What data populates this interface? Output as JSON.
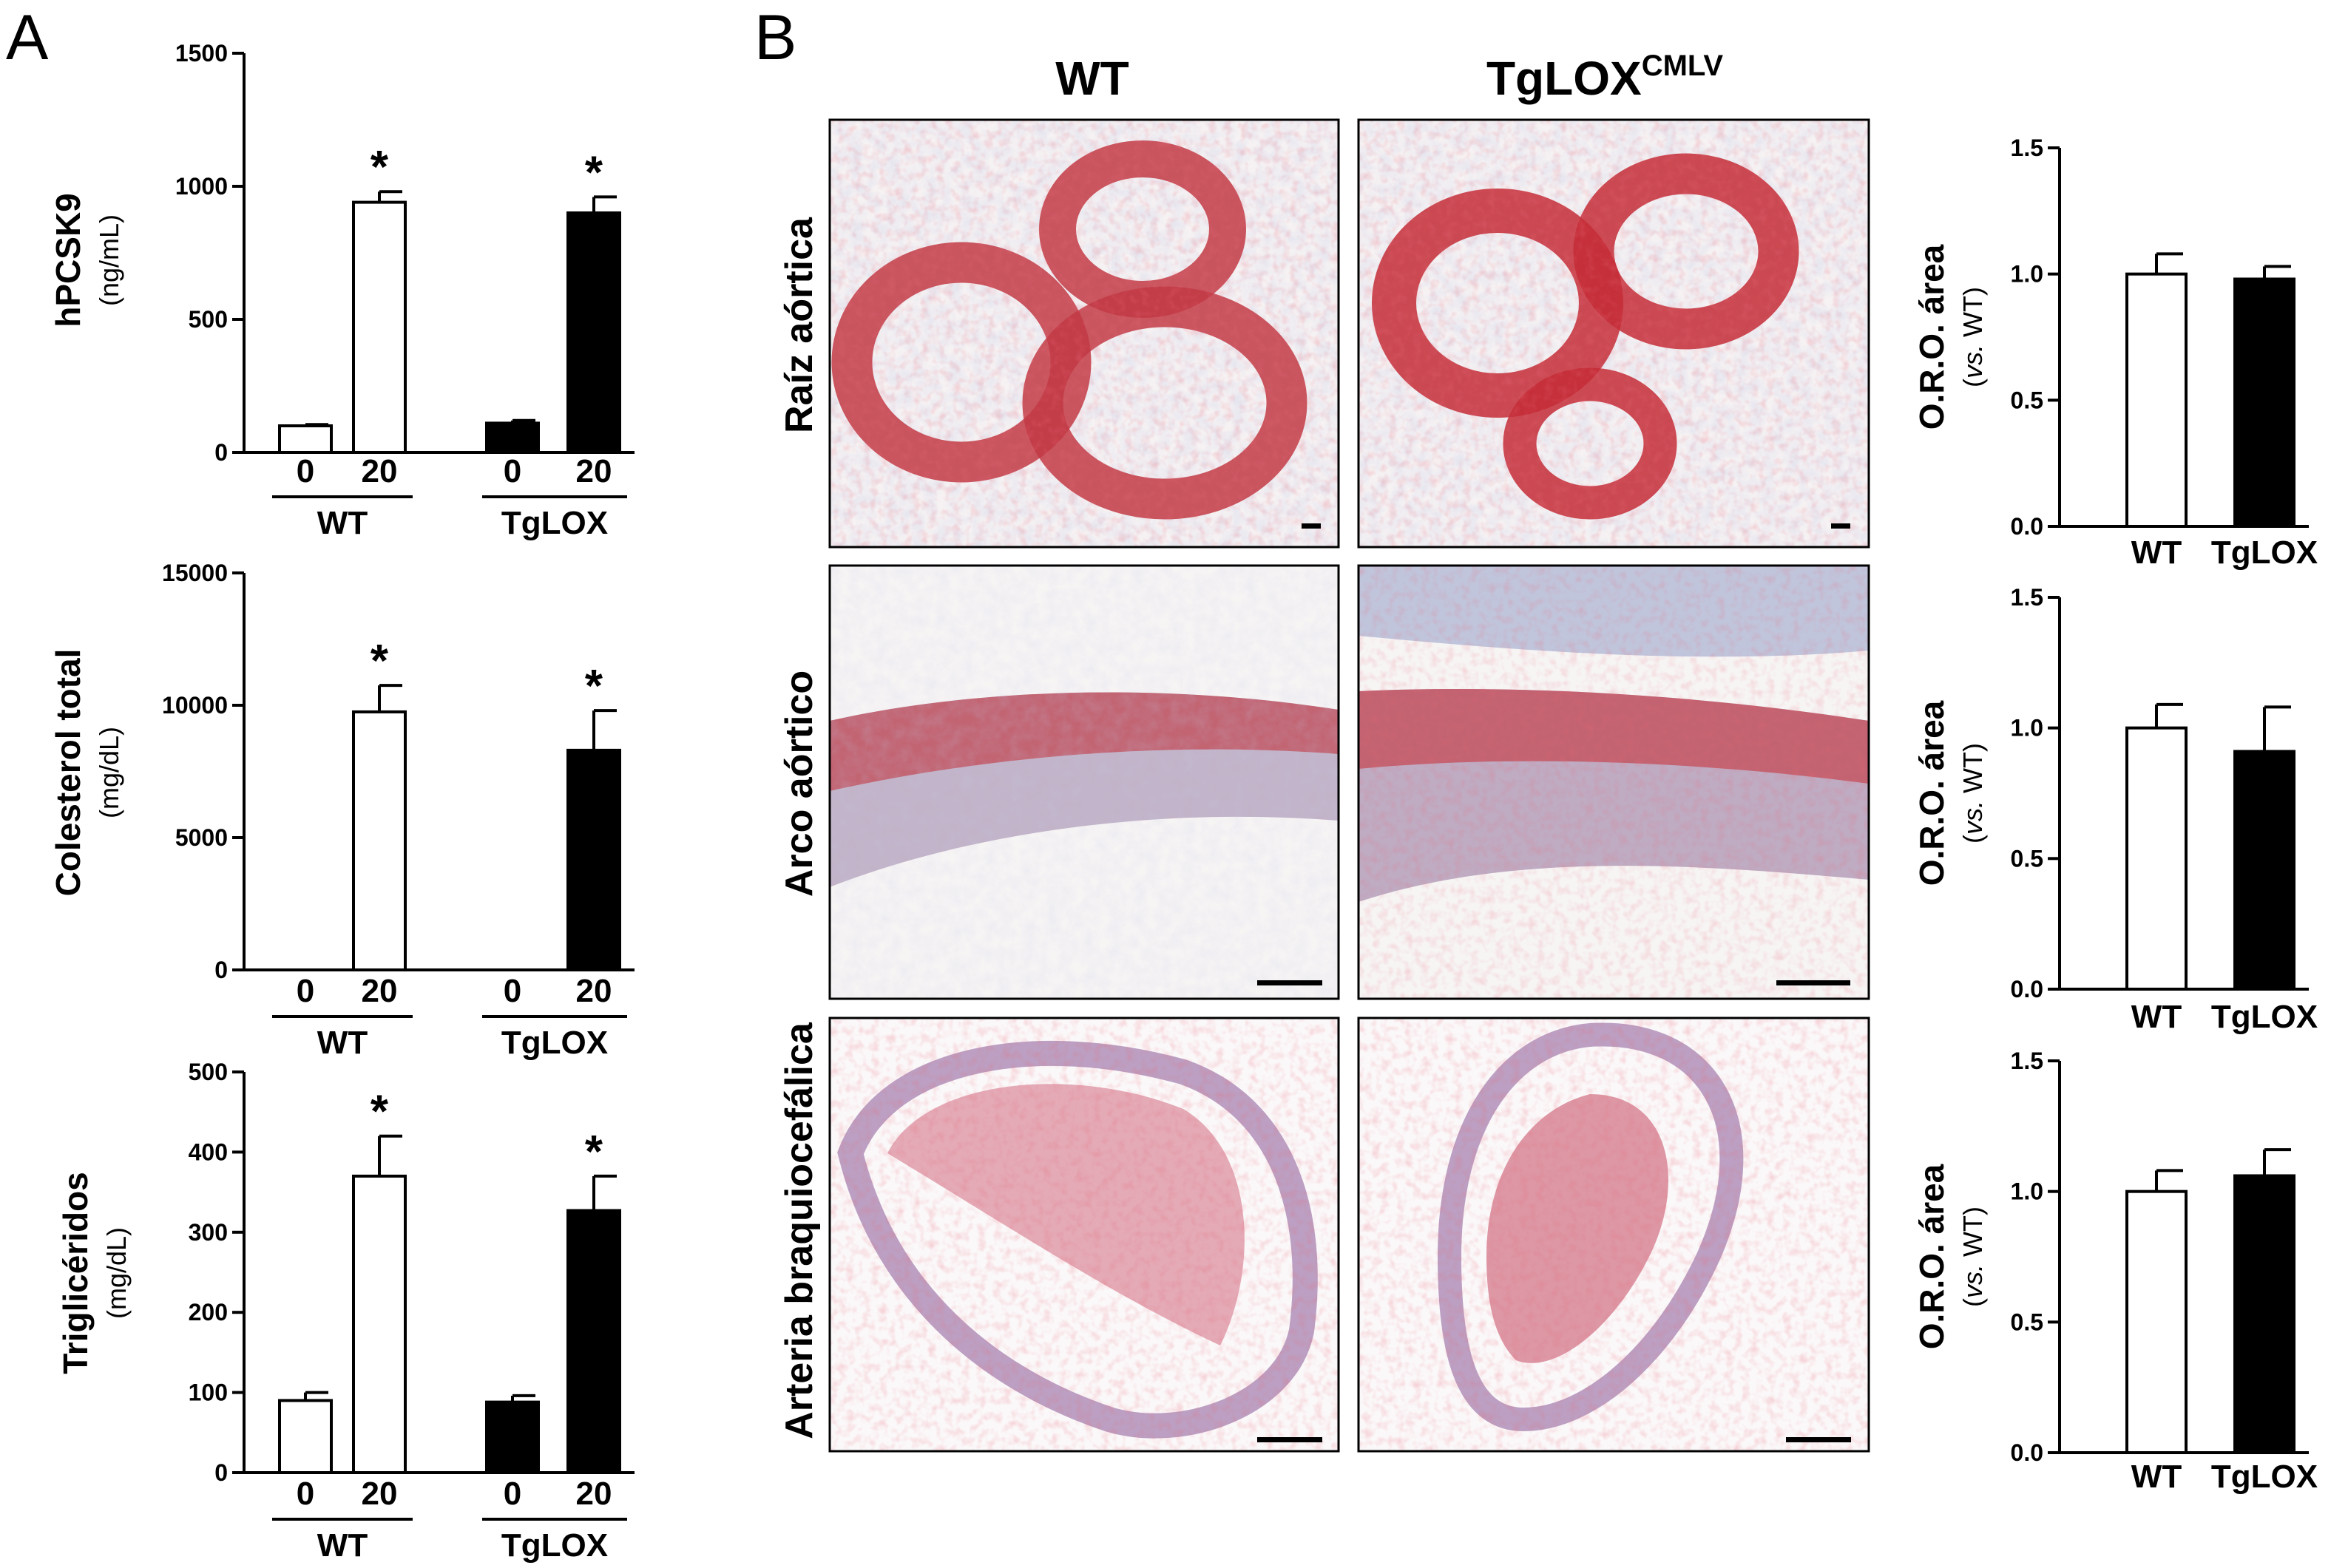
{
  "panels": {
    "a": "A",
    "b": "B"
  },
  "histology": {
    "columns": [
      "WT",
      "TgLOX"
    ],
    "column_superscript": [
      "",
      "CMLV"
    ],
    "rows": [
      "Raíz aórtica",
      "Arco aórtico",
      "Arteria braquiocefálica"
    ],
    "stain_colors": {
      "lipid": "#c8323c",
      "tissue": "#8c9bc8",
      "background": "#f7f4f4"
    }
  },
  "chart_data": [
    {
      "type": "bar",
      "panel": "A",
      "ylabel": "hPCSK9",
      "yunit": "(ng/mL)",
      "ylim": [
        0,
        1500
      ],
      "yticks": [
        0,
        500,
        1000,
        1500
      ],
      "categories": [
        "0",
        "20",
        "0",
        "20"
      ],
      "groups": [
        "WT",
        "TgLOX"
      ],
      "values": [
        100,
        940,
        110,
        900
      ],
      "errors": [
        5,
        40,
        10,
        60
      ],
      "fills": [
        "#ffffff",
        "#ffffff",
        "#000000",
        "#000000"
      ],
      "significance": [
        "",
        "*",
        "",
        "*"
      ]
    },
    {
      "type": "bar",
      "panel": "A",
      "ylabel": "Colesterol total",
      "yunit": "(mg/dL)",
      "ylim": [
        0,
        15000
      ],
      "yticks": [
        0,
        5000,
        10000,
        15000
      ],
      "categories": [
        "0",
        "20",
        "0",
        "20"
      ],
      "groups": [
        "WT",
        "TgLOX"
      ],
      "values": [
        0,
        9750,
        0,
        8300
      ],
      "errors": [
        0,
        1000,
        0,
        1500
      ],
      "fills": [
        "#ffffff",
        "#ffffff",
        "#000000",
        "#000000"
      ],
      "significance": [
        "",
        "*",
        "",
        "*"
      ]
    },
    {
      "type": "bar",
      "panel": "A",
      "ylabel": "Triglicéridos",
      "yunit": "(mg/dL)",
      "ylim": [
        0,
        500
      ],
      "yticks": [
        0,
        100,
        200,
        300,
        400,
        500
      ],
      "categories": [
        "0",
        "20",
        "0",
        "20"
      ],
      "groups": [
        "WT",
        "TgLOX"
      ],
      "values": [
        90,
        370,
        88,
        327
      ],
      "errors": [
        10,
        50,
        8,
        43
      ],
      "fills": [
        "#ffffff",
        "#ffffff",
        "#000000",
        "#000000"
      ],
      "significance": [
        "",
        "*",
        "",
        "*"
      ]
    },
    {
      "type": "bar",
      "panel": "B",
      "ylabel": "O.R.O. área",
      "yunit_italic": "vs.",
      "yunit_rest": " WT)",
      "ylim": [
        0,
        1.5
      ],
      "yticks": [
        "0.0",
        "0.5",
        "1.0",
        "1.5"
      ],
      "categories": [
        "WT",
        "TgLOX"
      ],
      "values": [
        1.0,
        0.98
      ],
      "errors": [
        0.08,
        0.05
      ],
      "fills": [
        "#ffffff",
        "#000000"
      ]
    },
    {
      "type": "bar",
      "panel": "B",
      "ylabel": "O.R.O. área",
      "yunit_italic": "vs.",
      "yunit_rest": " WT)",
      "ylim": [
        0,
        1.5
      ],
      "yticks": [
        "0.0",
        "0.5",
        "1.0",
        "1.5"
      ],
      "categories": [
        "WT",
        "TgLOX"
      ],
      "values": [
        1.0,
        0.91
      ],
      "errors": [
        0.09,
        0.17
      ],
      "fills": [
        "#ffffff",
        "#000000"
      ]
    },
    {
      "type": "bar",
      "panel": "B",
      "ylabel": "O.R.O. área",
      "yunit_italic": "vs.",
      "yunit_rest": " WT)",
      "ylim": [
        0,
        1.5
      ],
      "yticks": [
        "0.0",
        "0.5",
        "1.0",
        "1.5"
      ],
      "categories": [
        "WT",
        "TgLOX"
      ],
      "values": [
        1.0,
        1.06
      ],
      "errors": [
        0.08,
        0.1
      ],
      "fills": [
        "#ffffff",
        "#000000"
      ]
    }
  ]
}
